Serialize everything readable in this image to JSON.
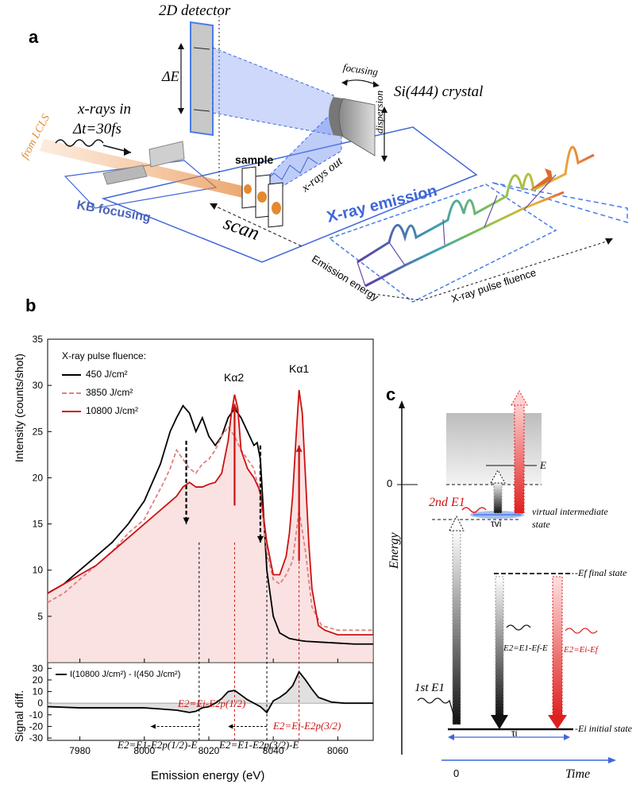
{
  "panel_a": {
    "letter": "a",
    "detector_label": "2D detector",
    "delta_e": "ΔE",
    "focusing": "focusing",
    "crystal": "Si(444) crystal",
    "dispersion": "dispersion",
    "xrays_in_1": "x-rays in",
    "xrays_in_2": "Δt=30fs",
    "from_lcls": "from LCLS",
    "kb_focusing": "KB focusing",
    "sample": "sample",
    "scan": "scan",
    "xrays_out": "x-rays out",
    "xray_emission": "X-ray emission",
    "emission_energy": "Emission energy",
    "pulse_fluence": "X-ray pulse fluence"
  },
  "panel_b": {
    "letter": "b",
    "legend_title": "X-ray pulse fluence:",
    "ylabel_top": "Intensity (counts/shot)",
    "ylabel_bottom": "Signal diff.",
    "xlabel": "Emission energy (eV)",
    "ka2": "Kα2",
    "ka1": "Kα1",
    "diff_legend": "I(10800 J/cm²) - I(450 J/cm²)",
    "ann_red_1": "E2=Ei-E2p(1/2)",
    "ann_red_2": "E2=Ei-E2p(3/2)",
    "ann_black_1": "E2=E1-E2p(1/2)-E",
    "ann_black_2": "E2=E1-E2p(3/2)-E"
  },
  "panel_c": {
    "letter": "c",
    "energy_axis": "Energy",
    "time_axis": "Time",
    "zero_energy": "0",
    "zero_time": "0",
    "E_label": "E",
    "second_E1": "2nd E1",
    "first_E1": "1st E1",
    "virtual_state_1": "virtual intermediate",
    "virtual_state_2": "state",
    "tau_vi": "τvi",
    "tau_i": "τi",
    "final_state": "-Ef final state",
    "initial_state": "-Ei initial state",
    "E2_black": "E2=E1-Ef-E",
    "E2_red": "E2=Ei-Ef"
  },
  "chart_data": [
    {
      "type": "line",
      "title": "",
      "xlabel": "Emission energy (eV)",
      "ylabel": "Intensity (counts/shot)",
      "xlim": [
        7970,
        8071
      ],
      "ylim": [
        0,
        35
      ],
      "x_ticks": [
        7980,
        8000,
        8020,
        8040,
        8060
      ],
      "y_ticks": [
        5,
        10,
        15,
        20,
        25,
        30,
        35
      ],
      "legend_title": "X-ray pulse fluence:",
      "legend_position": "top-left",
      "series": [
        {
          "name": "450 J/cm²",
          "color": "#000000",
          "style": "solid",
          "x": [
            7970,
            7975,
            7980,
            7985,
            7990,
            7995,
            8000,
            8005,
            8008,
            8010,
            8012,
            8014,
            8016,
            8018,
            8020,
            8022,
            8024,
            8026,
            8028,
            8030,
            8032,
            8034,
            8035,
            8036,
            8037,
            8038,
            8040,
            8042,
            8045,
            8048,
            8050,
            8055,
            8060,
            8065,
            8071
          ],
          "y": [
            7.5,
            8.5,
            10,
            11.5,
            13,
            15,
            17.5,
            21.5,
            25,
            26.5,
            27.8,
            27,
            25,
            26.5,
            24.5,
            23.5,
            24.5,
            26.5,
            27.5,
            26.5,
            25,
            23.5,
            23.8,
            22,
            16,
            10,
            5,
            3.2,
            2.6,
            2.4,
            2.3,
            2.2,
            2.1,
            2.0,
            2.0
          ]
        },
        {
          "name": "3850 J/cm²",
          "color": "#e08080",
          "style": "dashed",
          "x": [
            7970,
            7975,
            7980,
            7985,
            7990,
            7995,
            8000,
            8003,
            8006,
            8008,
            8010,
            8012,
            8014,
            8016,
            8018,
            8020,
            8022,
            8024,
            8026,
            8028,
            8030,
            8032,
            8034,
            8036,
            8038,
            8040,
            8042,
            8044,
            8046,
            8048,
            8050,
            8052,
            8055,
            8060,
            8065,
            8071
          ],
          "y": [
            6.5,
            7.5,
            9,
            10.5,
            12,
            14,
            15.5,
            17.5,
            19.5,
            21,
            23,
            22,
            21,
            20.5,
            21.5,
            22,
            23,
            24.5,
            25.5,
            24.5,
            23,
            22,
            21,
            18,
            12,
            9,
            8.5,
            9.5,
            11,
            16.5,
            12,
            6,
            4,
            3.5,
            3.5,
            3.5
          ]
        },
        {
          "name": "10800 J/cm²",
          "color": "#cc1111",
          "style": "solid",
          "x": [
            7970,
            7975,
            7980,
            7985,
            7990,
            7995,
            8000,
            8005,
            8010,
            8012,
            8014,
            8016,
            8018,
            8020,
            8022,
            8024,
            8026,
            8027,
            8028,
            8029,
            8030,
            8032,
            8034,
            8036,
            8038,
            8040,
            8042,
            8044,
            8045,
            8046,
            8047,
            8048,
            8049,
            8050,
            8051,
            8052,
            8054,
            8056,
            8060,
            8065,
            8071
          ],
          "y": [
            7.5,
            8.5,
            9.5,
            10.5,
            12,
            13.5,
            15,
            16.5,
            18,
            19,
            19.5,
            19,
            19,
            19.3,
            19.5,
            20.5,
            24,
            27,
            29,
            27.5,
            23,
            21,
            20,
            18.5,
            13,
            9.5,
            9.5,
            11.5,
            14,
            18,
            24,
            29.5,
            27,
            20,
            13,
            8,
            4,
            3.5,
            3,
            3,
            3
          ]
        }
      ]
    },
    {
      "type": "line",
      "title": "",
      "xlabel": "Emission energy (eV)",
      "ylabel": "Signal diff.",
      "xlim": [
        7970,
        8071
      ],
      "ylim": [
        -32,
        35
      ],
      "x_ticks": [
        7980,
        8000,
        8020,
        8040,
        8060
      ],
      "y_ticks": [
        -30,
        -20,
        -10,
        0,
        10,
        20,
        30
      ],
      "series": [
        {
          "name": "I(10800 J/cm²) - I(450 J/cm²)",
          "color": "#000000",
          "style": "solid",
          "x": [
            7970,
            7980,
            7990,
            8000,
            8005,
            8010,
            8014,
            8016,
            8018,
            8020,
            8022,
            8024,
            8026,
            8028,
            8030,
            8032,
            8034,
            8036,
            8038,
            8040,
            8042,
            8044,
            8046,
            8048,
            8050,
            8052,
            8054,
            8058,
            8062,
            8066,
            8071
          ],
          "y": [
            -3,
            -4,
            -4,
            -4,
            -5,
            -6,
            -8,
            -7,
            -4,
            -3,
            0,
            4,
            10,
            11,
            7,
            3,
            0,
            -3,
            -8,
            2,
            5,
            9,
            15,
            27,
            20,
            12,
            5,
            1,
            0,
            0,
            0
          ]
        }
      ]
    }
  ]
}
